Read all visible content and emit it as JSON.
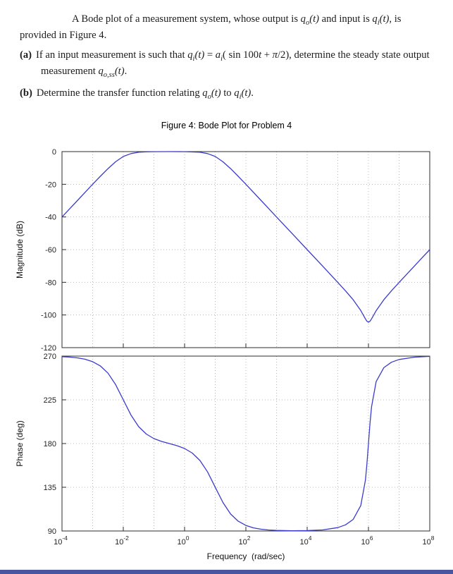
{
  "problem": {
    "intro_segments": [
      {
        "t": "A Bode plot of a measurement system, whose output is "
      },
      {
        "t": "q",
        "it": true
      },
      {
        "t": "o",
        "sub": true,
        "it": true
      },
      {
        "t": "(t)",
        "it": true
      },
      {
        "t": " and input is "
      },
      {
        "t": "q",
        "it": true
      },
      {
        "t": "i",
        "sub": true,
        "it": true
      },
      {
        "t": "(t)",
        "it": true
      },
      {
        "t": ", is provided in Figure 4."
      }
    ],
    "items": [
      {
        "label": "(a)",
        "segments": [
          {
            "t": "If an input measurement is such that "
          },
          {
            "t": "q",
            "it": true
          },
          {
            "t": "i",
            "sub": true,
            "it": true
          },
          {
            "t": "(t)",
            "it": true
          },
          {
            "t": " = "
          },
          {
            "t": "a",
            "it": true
          },
          {
            "t": "i",
            "sub": true,
            "it": true
          },
          {
            "t": "( sin 100"
          },
          {
            "t": "t",
            "it": true
          },
          {
            "t": " + "
          },
          {
            "t": "π",
            "it": true
          },
          {
            "t": "/2), determine the steady state output measurement "
          },
          {
            "t": "q",
            "it": true
          },
          {
            "t": "o,ss",
            "sub": true,
            "it": true
          },
          {
            "t": "(t)",
            "it": true
          },
          {
            "t": "."
          }
        ]
      },
      {
        "label": "(b)",
        "segments": [
          {
            "t": "Determine the transfer function relating "
          },
          {
            "t": "q",
            "it": true
          },
          {
            "t": "o",
            "sub": true,
            "it": true
          },
          {
            "t": "(t)",
            "it": true
          },
          {
            "t": " to "
          },
          {
            "t": "q",
            "it": true
          },
          {
            "t": "i",
            "sub": true,
            "it": true
          },
          {
            "t": "(t)",
            "it": true
          },
          {
            "t": "."
          }
        ]
      }
    ]
  },
  "figure": {
    "title": "Figure 4: Bode Plot for Problem 4"
  },
  "chart_data": {
    "type": "line",
    "title": "Figure 4: Bode Plot for Problem 4",
    "xlabel": "Frequency  (rad/sec)",
    "x_axis": "log10 of frequency in rad/sec, log scale",
    "xlim_log10": [
      -4,
      8
    ],
    "xtick_exponents": [
      -4,
      -2,
      0,
      2,
      4,
      6,
      8
    ],
    "grid": true,
    "line_color": "#3b3bcc",
    "panels": [
      {
        "name": "magnitude",
        "ylabel": "Magnitude (dB)",
        "ylim": [
          -120,
          0
        ],
        "yticks": [
          0,
          -20,
          -40,
          -60,
          -80,
          -100,
          -120
        ],
        "x_log10": [
          -4,
          -3.75,
          -3.5,
          -3.25,
          -3,
          -2.75,
          -2.5,
          -2.25,
          -2,
          -1.75,
          -1.5,
          -1.25,
          -1,
          -0.5,
          0,
          0.5,
          0.75,
          1,
          1.25,
          1.5,
          1.75,
          2,
          2.5,
          3,
          3.5,
          4,
          4.5,
          5,
          5.25,
          5.5,
          5.75,
          5.9,
          5.95,
          6,
          6.05,
          6.1,
          6.25,
          6.5,
          6.75,
          7,
          7.25,
          7.5,
          7.75,
          8
        ],
        "y": [
          -40,
          -35,
          -30,
          -25,
          -20,
          -15.1,
          -10.4,
          -6.2,
          -3,
          -1.2,
          -0.4,
          -0.15,
          -0.05,
          -0.01,
          -0.05,
          -0.4,
          -1.2,
          -3,
          -6.2,
          -10.4,
          -15.1,
          -20,
          -30,
          -40,
          -50,
          -60,
          -70,
          -80.1,
          -85.2,
          -90.7,
          -97.3,
          -102.4,
          -103.8,
          -104.4,
          -103.8,
          -102.4,
          -97.4,
          -90.7,
          -85.2,
          -80.1,
          -75,
          -70,
          -65,
          -60
        ]
      },
      {
        "name": "phase",
        "ylabel": "Phase (deg)",
        "ylim": [
          90,
          270
        ],
        "yticks": [
          270,
          225,
          180,
          135,
          90
        ],
        "x_log10": [
          -4,
          -3.75,
          -3.5,
          -3.25,
          -3,
          -2.75,
          -2.5,
          -2.25,
          -2,
          -1.75,
          -1.5,
          -1.25,
          -1,
          -0.75,
          -0.5,
          -0.25,
          0,
          0.25,
          0.5,
          0.75,
          1,
          1.25,
          1.5,
          1.75,
          2,
          2.25,
          2.5,
          2.75,
          3,
          3.5,
          4,
          4.5,
          5,
          5.25,
          5.5,
          5.75,
          5.9,
          5.95,
          6,
          6.05,
          6.1,
          6.25,
          6.5,
          6.75,
          7,
          7.5,
          8
        ],
        "y": [
          269.4,
          269,
          268.2,
          266.8,
          264.3,
          259.9,
          252.4,
          240.7,
          225,
          209.3,
          197.4,
          189.8,
          185.1,
          182.2,
          180,
          177.8,
          174.9,
          170.2,
          162.6,
          150.8,
          135.1,
          119.4,
          107.5,
          100.1,
          95.7,
          93.2,
          91.8,
          91,
          90.6,
          90.2,
          90.4,
          91.1,
          93.5,
          96.3,
          101.9,
          116.2,
          142.3,
          158.9,
          180,
          201,
          217.8,
          243.7,
          258.1,
          263.7,
          266.5,
          268.9,
          269.7
        ]
      }
    ]
  }
}
